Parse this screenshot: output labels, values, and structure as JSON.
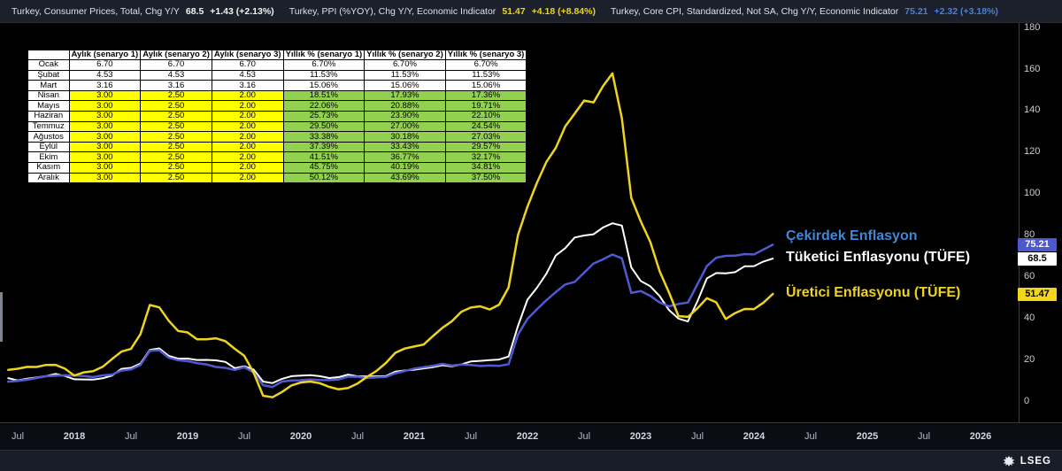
{
  "header": {
    "series": [
      {
        "id": "cpi",
        "label": "Turkey, Consumer Prices, Total, Chg Y/Y",
        "value": "68.5",
        "change": "+1.43 (+2.13%)",
        "color": "#f2f3f5"
      },
      {
        "id": "ppi",
        "label": "Turkey, PPI (%YOY), Chg Y/Y, Economic Indicator",
        "value": "51.47",
        "change": "+4.18 (+8.84%)",
        "color": "#e9d41f"
      },
      {
        "id": "core",
        "label": "Turkey, Core CPI, Standardized, Not SA, Chg Y/Y, Economic Indicator",
        "value": "75.21",
        "change": "+2.32 (+3.18%)",
        "color": "#4b7fd8"
      }
    ]
  },
  "scenario_table": {
    "columns": [
      "",
      "Aylık (senaryo 1)",
      "Aylık (senaryo 2)",
      "Aylık (senaryo 3)",
      "Yıllık % (senaryo 1)",
      "Yıllık % (senaryo 2)",
      "Yıllık % (senaryo 3)"
    ],
    "rows": [
      {
        "month": "Ocak",
        "monthly": [
          "6.70",
          "6.70",
          "6.70"
        ],
        "yearly": [
          "6.70%",
          "6.70%",
          "6.70%"
        ],
        "scenario": false
      },
      {
        "month": "Şubat",
        "monthly": [
          "4.53",
          "4.53",
          "4.53"
        ],
        "yearly": [
          "11.53%",
          "11.53%",
          "11.53%"
        ],
        "scenario": false
      },
      {
        "month": "Mart",
        "monthly": [
          "3.16",
          "3.16",
          "3.16"
        ],
        "yearly": [
          "15.06%",
          "15.06%",
          "15.06%"
        ],
        "scenario": false
      },
      {
        "month": "Nisan",
        "monthly": [
          "3.00",
          "2.50",
          "2.00"
        ],
        "yearly": [
          "18.51%",
          "17.93%",
          "17.36%"
        ],
        "scenario": true
      },
      {
        "month": "Mayıs",
        "monthly": [
          "3.00",
          "2.50",
          "2.00"
        ],
        "yearly": [
          "22.06%",
          "20.88%",
          "19.71%"
        ],
        "scenario": true
      },
      {
        "month": "Haziran",
        "monthly": [
          "3.00",
          "2.50",
          "2.00"
        ],
        "yearly": [
          "25.73%",
          "23.90%",
          "22.10%"
        ],
        "scenario": true
      },
      {
        "month": "Temmuz",
        "monthly": [
          "3.00",
          "2.50",
          "2.00"
        ],
        "yearly": [
          "29.50%",
          "27.00%",
          "24.54%"
        ],
        "scenario": true
      },
      {
        "month": "Ağustos",
        "monthly": [
          "3.00",
          "2.50",
          "2.00"
        ],
        "yearly": [
          "33.38%",
          "30.18%",
          "27.03%"
        ],
        "scenario": true
      },
      {
        "month": "Eylül",
        "monthly": [
          "3.00",
          "2.50",
          "2.00"
        ],
        "yearly": [
          "37.39%",
          "33.43%",
          "29.57%"
        ],
        "scenario": true
      },
      {
        "month": "Ekim",
        "monthly": [
          "3.00",
          "2.50",
          "2.00"
        ],
        "yearly": [
          "41.51%",
          "36.77%",
          "32.17%"
        ],
        "scenario": true
      },
      {
        "month": "Kasım",
        "monthly": [
          "3.00",
          "2.50",
          "2.00"
        ],
        "yearly": [
          "45.75%",
          "40.19%",
          "34.81%"
        ],
        "scenario": true
      },
      {
        "month": "Aralık",
        "monthly": [
          "3.00",
          "2.50",
          "2.00"
        ],
        "yearly": [
          "50.12%",
          "43.69%",
          "37.50%"
        ],
        "scenario": true
      }
    ],
    "highlight_colors": {
      "monthly": "#ffff00",
      "yearly": "#92d050"
    }
  },
  "chart_data": {
    "type": "line",
    "x_start": "2017-06",
    "x_step": "1 month",
    "x_end": "2024-03",
    "ylim": [
      0,
      185
    ],
    "grid": false,
    "y_ticks": [
      0,
      20,
      40,
      60,
      80,
      100,
      120,
      140,
      160,
      180
    ],
    "x_axis_ticks": [
      "Jul",
      "2018",
      "Jul",
      "2019",
      "Jul",
      "2020",
      "Jul",
      "2021",
      "Jul",
      "2022",
      "Jul",
      "2023",
      "Jul",
      "2024",
      "Jul",
      "2025",
      "Jul",
      "2026"
    ],
    "series": [
      {
        "id": "cpi",
        "name": "Tüketici Enflasyonu (TÜFE)",
        "color": "#ffffff",
        "last": 68.5,
        "values": [
          10.9,
          9.79,
          10.68,
          11.2,
          11.9,
          12.98,
          11.92,
          10.35,
          10.26,
          10.23,
          10.85,
          12.15,
          15.39,
          15.85,
          17.9,
          24.52,
          25.24,
          21.62,
          20.3,
          20.35,
          19.67,
          19.71,
          19.5,
          18.71,
          15.72,
          16.65,
          15.01,
          9.26,
          8.55,
          10.56,
          11.84,
          12.15,
          12.37,
          11.86,
          10.94,
          11.39,
          12.62,
          11.76,
          11.77,
          11.75,
          11.89,
          14.03,
          14.6,
          14.97,
          15.61,
          16.19,
          17.14,
          16.59,
          17.53,
          18.95,
          19.25,
          19.58,
          19.89,
          21.31,
          36.08,
          48.69,
          54.44,
          61.14,
          69.97,
          73.5,
          78.62,
          79.6,
          80.21,
          83.45,
          85.51,
          84.39,
          64.27,
          57.68,
          55.18,
          50.51,
          43.68,
          39.59,
          38.21,
          47.83,
          58.94,
          61.53,
          61.36,
          61.98,
          64.77,
          64.86,
          67.07,
          68.5
        ]
      },
      {
        "id": "core",
        "name": "Çekirdek Enflasyon",
        "color": "#5059d0",
        "last": 75.21,
        "values": [
          9.2,
          9.6,
          10.16,
          10.98,
          11.82,
          12.08,
          12.3,
          12.18,
          11.94,
          11.44,
          12.24,
          12.64,
          14.6,
          15.1,
          17.22,
          24.05,
          24.34,
          20.72,
          19.53,
          19.1,
          18.12,
          17.53,
          16.3,
          15.86,
          14.86,
          16.2,
          13.6,
          7.54,
          6.67,
          9.25,
          9.81,
          9.88,
          10.27,
          9.97,
          9.92,
          10.27,
          11.64,
          11.48,
          11.0,
          11.32,
          11.48,
          13.26,
          14.31,
          15.53,
          16.21,
          16.88,
          17.77,
          16.99,
          17.47,
          17.22,
          16.76,
          16.98,
          16.82,
          17.62,
          31.88,
          39.45,
          44.05,
          48.39,
          52.37,
          56.04,
          57.26,
          61.69,
          66.13,
          68.09,
          70.45,
          68.62,
          51.93,
          52.89,
          50.58,
          47.36,
          45.48,
          46.62,
          47.33,
          56.09,
          64.86,
          68.93,
          69.8,
          69.89,
          70.64,
          70.48,
          72.89,
          75.21
        ]
      },
      {
        "id": "ppi",
        "name": "Üretici Enflasyonu (TÜFE)",
        "color": "#eed41e",
        "last": 51.47,
        "values": [
          14.87,
          15.45,
          16.34,
          16.28,
          17.28,
          17.3,
          15.47,
          12.14,
          13.71,
          14.28,
          16.37,
          20.16,
          23.71,
          25.0,
          32.13,
          46.15,
          45.01,
          38.54,
          33.64,
          32.93,
          29.59,
          29.64,
          30.12,
          28.71,
          25.04,
          21.66,
          13.45,
          2.45,
          1.7,
          4.26,
          7.36,
          8.84,
          9.26,
          8.5,
          6.71,
          5.53,
          6.17,
          8.33,
          11.53,
          14.33,
          18.2,
          23.11,
          25.15,
          26.16,
          27.09,
          31.2,
          35.17,
          38.33,
          42.89,
          44.92,
          45.52,
          43.96,
          46.31,
          54.62,
          79.89,
          93.53,
          105.01,
          114.97,
          121.82,
          132.16,
          138.31,
          144.61,
          143.75,
          151.5,
          157.69,
          136.02,
          97.72,
          86.46,
          76.61,
          62.45,
          52.11,
          40.76,
          40.42,
          44.5,
          49.41,
          47.44,
          39.39,
          42.25,
          44.22,
          44.2,
          47.29,
          51.47
        ]
      }
    ],
    "annotations": [
      {
        "id": "core",
        "text": "Çekirdek Enflasyon",
        "color": "#3f87d9"
      },
      {
        "id": "cpi",
        "text": "Tüketici Enflasyonu (TÜFE)",
        "color": "#ffffff"
      },
      {
        "id": "ppi",
        "text": "Üretici Enflasyonu (TÜFE)",
        "color": "#eed41e"
      }
    ],
    "y_axis_badges": [
      {
        "id": "core",
        "text": "75.21",
        "bg": "#4d58d0",
        "fg": "#ffffff"
      },
      {
        "id": "cpi",
        "text": "68.5",
        "bg": "#ffffff",
        "fg": "#000000"
      },
      {
        "id": "ppi",
        "text": "51.47",
        "bg": "#f3d61b",
        "fg": "#000000"
      }
    ]
  },
  "footer": {
    "brand": "LSEG"
  }
}
